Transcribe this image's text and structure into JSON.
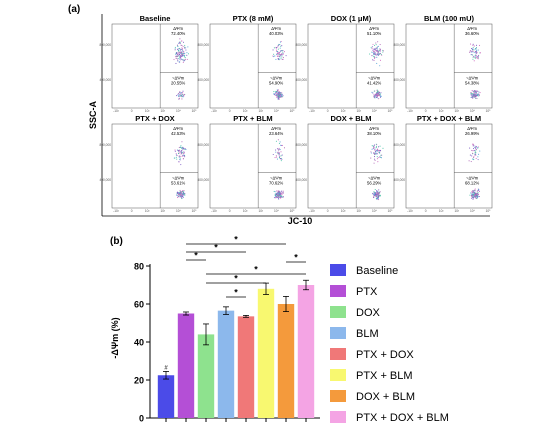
{
  "panel_a": {
    "label": "(a)",
    "ylabel": "SSC-A",
    "xlabel": "JC-10",
    "gate_labels": {
      "hi": "ΔΨm",
      "lo": "~ΔΨm"
    },
    "x_ticks": [
      "-10²",
      "0",
      "10²",
      "10³",
      "10⁴",
      "10⁵"
    ],
    "y_ticks": [
      "400,000",
      "800,000"
    ],
    "panels": [
      {
        "title": "Baseline",
        "hi_pct": "72.40%",
        "lo_pct": "20.55%"
      },
      {
        "title": "PTX (8 mM)",
        "hi_pct": "40.03%",
        "lo_pct": "54.90%"
      },
      {
        "title": "DOX (1 μM)",
        "hi_pct": "51.10%",
        "lo_pct": "41.42%"
      },
      {
        "title": "BLM (100 mU)",
        "hi_pct": "36.60%",
        "lo_pct": "54.38%"
      },
      {
        "title": "PTX + DOX",
        "hi_pct": "42.53%",
        "lo_pct": "53.61%"
      },
      {
        "title": "PTX + BLM",
        "hi_pct": "23.64%",
        "lo_pct": "70.62%"
      },
      {
        "title": "DOX + BLM",
        "hi_pct": "38.10%",
        "lo_pct": "56.29%"
      },
      {
        "title": "PTX + DOX + BLM",
        "hi_pct": "26.99%",
        "lo_pct": "68.12%"
      }
    ]
  },
  "chart_data": {
    "type": "bar",
    "label": "(b)",
    "ylabel": "-ΔΨm (%)",
    "ylim": [
      0,
      80
    ],
    "yticks": [
      "0",
      "20",
      "40",
      "60",
      "80"
    ],
    "categories": [
      "Baseline",
      "PTX",
      "DOX",
      "BLM",
      "PTX + DOX",
      "PTX + BLM",
      "DOX + BLM",
      "PTX + DOX + BLM"
    ],
    "values": [
      22.5,
      55,
      44,
      56.5,
      53.5,
      68,
      60,
      70
    ],
    "errors": [
      2,
      0.8,
      5.5,
      2,
      0.5,
      3,
      4,
      2.5
    ],
    "colors": [
      "#4b4be8",
      "#b44fd6",
      "#8ee28e",
      "#8cb8ec",
      "#f07878",
      "#f8f870",
      "#f49a3c",
      "#f4a4e4"
    ],
    "legend": [
      "Baseline",
      "PTX",
      "DOX",
      "BLM",
      "PTX + DOX",
      "PTX + BLM",
      "DOX + BLM",
      "PTX + DOX + BLM"
    ],
    "legend_position": "right",
    "marker": "#",
    "significance": [
      {
        "from": "PTX",
        "to": "DOX + BLM",
        "text": "*"
      },
      {
        "from": "PTX",
        "to": "PTX + DOX",
        "text": "*"
      },
      {
        "from": "PTX",
        "to": "DOX",
        "text": "*"
      },
      {
        "from": "DOX",
        "to": "PTX + DOX + BLM",
        "text": "*"
      },
      {
        "from": "DOX",
        "to": "PTX + BLM",
        "text": "*"
      },
      {
        "from": "DOX + BLM",
        "to": "PTX + DOX + BLM",
        "text": "*"
      },
      {
        "from": "BLM",
        "to": "PTX + DOX",
        "text": "*"
      }
    ]
  }
}
